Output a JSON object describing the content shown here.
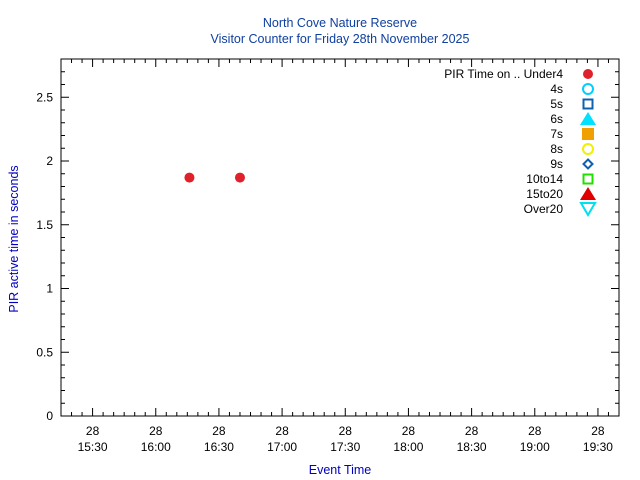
{
  "chart_data": {
    "type": "scatter",
    "title": "North Cove Nature Reserve",
    "subtitle": "Visitor Counter for Friday 28th November 2025",
    "xlabel": "Event Time",
    "ylabel": "PIR active time in seconds",
    "xlim": [
      "2025-11-28 15:15",
      "2025-11-28 19:40"
    ],
    "ylim": [
      0,
      2.8
    ],
    "yticks": [
      0,
      0.5,
      1,
      1.5,
      2,
      2.5
    ],
    "ytick_labels": [
      "0",
      "0.5",
      "1",
      "1.5",
      "2",
      "2.5"
    ],
    "xticks": [
      {
        "value": "2025-11-28 15:30",
        "day": "28",
        "time": "15:30"
      },
      {
        "value": "2025-11-28 16:00",
        "day": "28",
        "time": "16:00"
      },
      {
        "value": "2025-11-28 16:30",
        "day": "28",
        "time": "16:30"
      },
      {
        "value": "2025-11-28 17:00",
        "day": "28",
        "time": "17:00"
      },
      {
        "value": "2025-11-28 17:30",
        "day": "28",
        "time": "17:30"
      },
      {
        "value": "2025-11-28 18:00",
        "day": "28",
        "time": "18:00"
      },
      {
        "value": "2025-11-28 18:30",
        "day": "28",
        "time": "18:30"
      },
      {
        "value": "2025-11-28 19:00",
        "day": "28",
        "time": "19:00"
      },
      {
        "value": "2025-11-28 19:30",
        "day": "28",
        "time": "19:30"
      }
    ],
    "grid": false,
    "legend_position": "top-right",
    "series": [
      {
        "name": "PIR Time on .. Under4",
        "marker": "circle-filled",
        "color": "#e0202a",
        "points": [
          {
            "x": "2025-11-28 16:16",
            "y": 1.87
          },
          {
            "x": "2025-11-28 16:40",
            "y": 1.87
          }
        ]
      },
      {
        "name": "4s",
        "marker": "circle-open",
        "color": "#00d0ff",
        "points": []
      },
      {
        "name": "5s",
        "marker": "square-open",
        "color": "#1060b0",
        "points": []
      },
      {
        "name": "6s",
        "marker": "triangle-filled",
        "color": "#00e0ff",
        "points": []
      },
      {
        "name": "7s",
        "marker": "square-filled",
        "color": "#f0a000",
        "points": []
      },
      {
        "name": "8s",
        "marker": "circle-open",
        "color": "#f0f000",
        "points": []
      },
      {
        "name": "9s",
        "marker": "diamond-open",
        "color": "#1060b0",
        "points": []
      },
      {
        "name": "10to14",
        "marker": "square-open",
        "color": "#20e000",
        "points": []
      },
      {
        "name": "15to20",
        "marker": "triangle-filled",
        "color": "#e00000",
        "points": []
      },
      {
        "name": "Over20",
        "marker": "triangle-down-open",
        "color": "#00e0f0",
        "points": []
      }
    ],
    "colors": {
      "title": "#1040a0",
      "axis_label": "#0000c0",
      "axis": "#000000"
    }
  }
}
